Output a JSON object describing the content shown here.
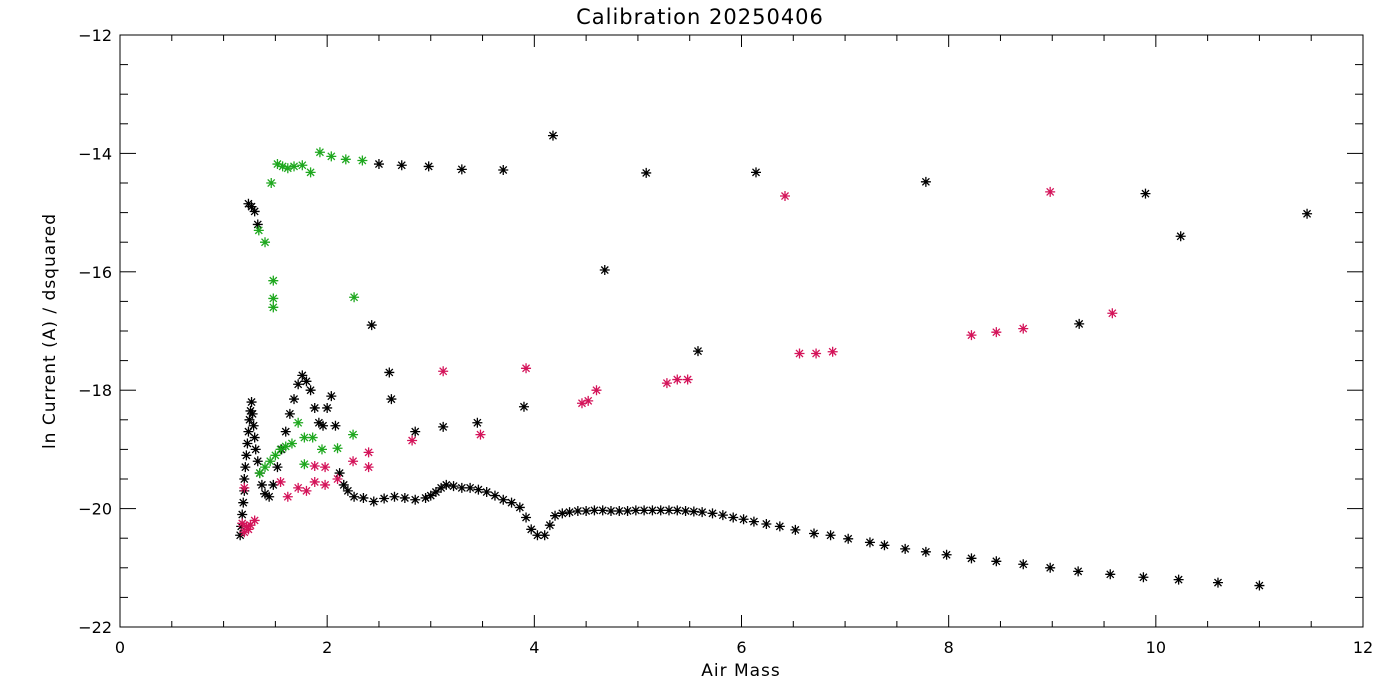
{
  "chart_data": {
    "type": "scatter",
    "title": "Calibration 20250406",
    "xlabel": "Air Mass",
    "ylabel": "ln Current (A) / dsquared",
    "xlim": [
      0,
      12
    ],
    "ylim": [
      -22,
      -12
    ],
    "xticks": [
      0,
      2,
      4,
      6,
      8,
      10,
      12
    ],
    "yticks": [
      -22,
      -20,
      -18,
      -16,
      -14,
      -12
    ],
    "marker": "asterisk",
    "grid": false,
    "series": [
      {
        "color": "#000000",
        "points": [
          [
            1.16,
            -20.45
          ],
          [
            1.17,
            -20.3
          ],
          [
            1.18,
            -20.1
          ],
          [
            1.19,
            -19.9
          ],
          [
            1.2,
            -19.7
          ],
          [
            1.2,
            -19.5
          ],
          [
            1.21,
            -19.3
          ],
          [
            1.22,
            -19.1
          ],
          [
            1.23,
            -18.9
          ],
          [
            1.24,
            -18.7
          ],
          [
            1.25,
            -18.5
          ],
          [
            1.26,
            -18.35
          ],
          [
            1.27,
            -18.2
          ],
          [
            1.28,
            -18.4
          ],
          [
            1.29,
            -18.6
          ],
          [
            1.3,
            -18.8
          ],
          [
            1.31,
            -19.0
          ],
          [
            1.33,
            -19.2
          ],
          [
            1.35,
            -19.4
          ],
          [
            1.37,
            -19.6
          ],
          [
            1.4,
            -19.75
          ],
          [
            1.44,
            -19.8
          ],
          [
            1.48,
            -19.6
          ],
          [
            1.52,
            -19.3
          ],
          [
            1.56,
            -19.0
          ],
          [
            1.6,
            -18.7
          ],
          [
            1.64,
            -18.4
          ],
          [
            1.68,
            -18.15
          ],
          [
            1.72,
            -17.9
          ],
          [
            1.76,
            -17.75
          ],
          [
            1.8,
            -17.85
          ],
          [
            1.84,
            -18.0
          ],
          [
            1.88,
            -18.3
          ],
          [
            1.92,
            -18.55
          ],
          [
            1.96,
            -18.6
          ],
          [
            2.0,
            -18.3
          ],
          [
            2.04,
            -18.1
          ],
          [
            2.08,
            -18.6
          ],
          [
            2.12,
            -19.4
          ],
          [
            2.16,
            -19.6
          ],
          [
            2.2,
            -19.7
          ],
          [
            2.26,
            -19.8
          ],
          [
            2.35,
            -19.82
          ],
          [
            2.45,
            -19.88
          ],
          [
            2.55,
            -19.83
          ],
          [
            2.65,
            -19.8
          ],
          [
            2.75,
            -19.82
          ],
          [
            2.85,
            -19.85
          ],
          [
            2.95,
            -19.82
          ],
          [
            3.0,
            -19.78
          ],
          [
            3.05,
            -19.72
          ],
          [
            3.1,
            -19.65
          ],
          [
            3.15,
            -19.6
          ],
          [
            3.22,
            -19.62
          ],
          [
            3.3,
            -19.65
          ],
          [
            3.38,
            -19.65
          ],
          [
            3.46,
            -19.68
          ],
          [
            3.54,
            -19.72
          ],
          [
            3.62,
            -19.78
          ],
          [
            3.7,
            -19.85
          ],
          [
            3.78,
            -19.9
          ],
          [
            3.86,
            -19.98
          ],
          [
            3.92,
            -20.15
          ],
          [
            3.97,
            -20.35
          ],
          [
            4.03,
            -20.45
          ],
          [
            4.1,
            -20.45
          ],
          [
            4.15,
            -20.28
          ],
          [
            4.2,
            -20.12
          ],
          [
            4.27,
            -20.08
          ],
          [
            4.34,
            -20.06
          ],
          [
            4.42,
            -20.04
          ],
          [
            4.5,
            -20.04
          ],
          [
            4.58,
            -20.03
          ],
          [
            4.66,
            -20.03
          ],
          [
            4.74,
            -20.04
          ],
          [
            4.82,
            -20.04
          ],
          [
            4.9,
            -20.04
          ],
          [
            4.98,
            -20.03
          ],
          [
            5.06,
            -20.03
          ],
          [
            5.14,
            -20.03
          ],
          [
            5.22,
            -20.03
          ],
          [
            5.3,
            -20.03
          ],
          [
            5.38,
            -20.03
          ],
          [
            5.46,
            -20.04
          ],
          [
            5.54,
            -20.05
          ],
          [
            5.62,
            -20.06
          ],
          [
            5.72,
            -20.08
          ],
          [
            5.82,
            -20.11
          ],
          [
            5.92,
            -20.15
          ],
          [
            6.02,
            -20.18
          ],
          [
            6.12,
            -20.22
          ],
          [
            6.24,
            -20.26
          ],
          [
            6.37,
            -20.3
          ],
          [
            6.52,
            -20.36
          ],
          [
            6.7,
            -20.42
          ],
          [
            6.86,
            -20.45
          ],
          [
            7.03,
            -20.51
          ],
          [
            7.24,
            -20.57
          ],
          [
            7.38,
            -20.62
          ],
          [
            7.58,
            -20.68
          ],
          [
            7.78,
            -20.73
          ],
          [
            7.98,
            -20.78
          ],
          [
            8.22,
            -20.84
          ],
          [
            8.46,
            -20.89
          ],
          [
            8.72,
            -20.94
          ],
          [
            8.98,
            -21.0
          ],
          [
            9.25,
            -21.06
          ],
          [
            9.56,
            -21.11
          ],
          [
            9.88,
            -21.16
          ],
          [
            10.22,
            -21.2
          ],
          [
            10.6,
            -21.25
          ],
          [
            11.0,
            -21.3
          ],
          [
            1.24,
            -14.85
          ],
          [
            1.27,
            -14.9
          ],
          [
            1.3,
            -14.98
          ],
          [
            1.33,
            -15.2
          ],
          [
            2.43,
            -16.9
          ],
          [
            2.5,
            -14.18
          ],
          [
            2.6,
            -17.7
          ],
          [
            2.62,
            -18.15
          ],
          [
            2.72,
            -14.2
          ],
          [
            2.85,
            -18.7
          ],
          [
            2.98,
            -14.22
          ],
          [
            3.12,
            -18.62
          ],
          [
            3.3,
            -14.27
          ],
          [
            3.45,
            -18.55
          ],
          [
            3.7,
            -14.28
          ],
          [
            3.9,
            -18.28
          ],
          [
            4.18,
            -13.7
          ],
          [
            4.68,
            -15.97
          ],
          [
            5.08,
            -14.33
          ],
          [
            5.58,
            -17.34
          ],
          [
            6.14,
            -14.32
          ],
          [
            7.78,
            -14.48
          ],
          [
            9.26,
            -16.88
          ],
          [
            9.9,
            -14.68
          ],
          [
            10.24,
            -15.4
          ],
          [
            11.46,
            -15.02
          ]
        ]
      },
      {
        "color": "#1fa81f",
        "points": [
          [
            1.34,
            -15.3
          ],
          [
            1.4,
            -15.5
          ],
          [
            1.46,
            -14.5
          ],
          [
            1.48,
            -16.15
          ],
          [
            1.48,
            -16.45
          ],
          [
            1.48,
            -16.6
          ],
          [
            1.52,
            -14.18
          ],
          [
            1.57,
            -14.22
          ],
          [
            1.62,
            -14.25
          ],
          [
            1.68,
            -14.22
          ],
          [
            1.76,
            -14.2
          ],
          [
            1.84,
            -14.32
          ],
          [
            1.93,
            -13.98
          ],
          [
            2.04,
            -14.05
          ],
          [
            2.18,
            -14.1
          ],
          [
            2.26,
            -16.43
          ],
          [
            2.34,
            -14.12
          ],
          [
            1.35,
            -19.4
          ],
          [
            1.4,
            -19.3
          ],
          [
            1.45,
            -19.2
          ],
          [
            1.5,
            -19.1
          ],
          [
            1.55,
            -19.0
          ],
          [
            1.6,
            -18.95
          ],
          [
            1.66,
            -18.9
          ],
          [
            1.72,
            -18.55
          ],
          [
            1.78,
            -18.8
          ],
          [
            1.86,
            -18.8
          ],
          [
            1.95,
            -19.0
          ],
          [
            2.1,
            -18.98
          ],
          [
            2.25,
            -18.75
          ],
          [
            1.78,
            -19.25
          ]
        ]
      },
      {
        "color": "#d4145a",
        "points": [
          [
            1.18,
            -20.25
          ],
          [
            1.2,
            -20.4
          ],
          [
            1.22,
            -20.3
          ],
          [
            1.24,
            -20.35
          ],
          [
            1.26,
            -20.28
          ],
          [
            1.3,
            -20.2
          ],
          [
            1.2,
            -19.65
          ],
          [
            1.55,
            -19.55
          ],
          [
            1.62,
            -19.8
          ],
          [
            1.72,
            -19.65
          ],
          [
            1.8,
            -19.7
          ],
          [
            1.88,
            -19.55
          ],
          [
            1.98,
            -19.6
          ],
          [
            1.88,
            -19.28
          ],
          [
            1.98,
            -19.3
          ],
          [
            2.1,
            -19.5
          ],
          [
            2.25,
            -19.2
          ],
          [
            2.4,
            -19.3
          ],
          [
            2.4,
            -19.05
          ],
          [
            2.82,
            -18.85
          ],
          [
            3.12,
            -17.68
          ],
          [
            3.48,
            -18.75
          ],
          [
            3.92,
            -17.63
          ],
          [
            4.46,
            -18.22
          ],
          [
            4.52,
            -18.18
          ],
          [
            4.6,
            -18.0
          ],
          [
            5.28,
            -17.88
          ],
          [
            5.38,
            -17.82
          ],
          [
            5.48,
            -17.82
          ],
          [
            6.42,
            -14.72
          ],
          [
            6.56,
            -17.38
          ],
          [
            6.72,
            -17.38
          ],
          [
            6.88,
            -17.35
          ],
          [
            8.22,
            -17.07
          ],
          [
            8.46,
            -17.02
          ],
          [
            8.72,
            -16.96
          ],
          [
            8.98,
            -14.65
          ],
          [
            9.58,
            -16.7
          ]
        ]
      }
    ]
  }
}
